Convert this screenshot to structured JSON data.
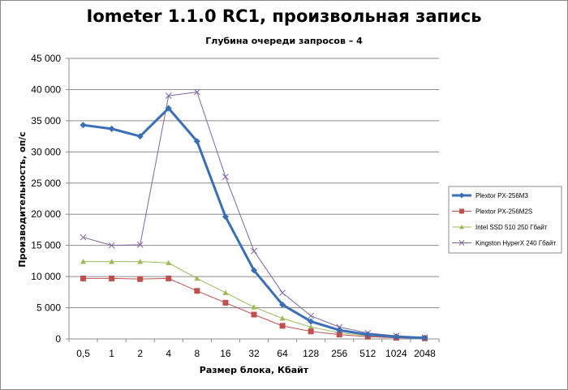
{
  "chart_data": {
    "type": "line",
    "title": "Iometer 1.1.0 RC1, произвольная запись",
    "subtitle": "Глубина очереди запросов – 4",
    "xlabel": "Размер блока, Кбайт",
    "ylabel": "Производительность, оп/с",
    "categories": [
      "0,5",
      "1",
      "2",
      "4",
      "8",
      "16",
      "32",
      "64",
      "128",
      "256",
      "512",
      "1024",
      "2048"
    ],
    "ylim": [
      0,
      45000
    ],
    "yticks": [
      0,
      5000,
      10000,
      15000,
      20000,
      25000,
      30000,
      35000,
      40000,
      45000
    ],
    "ytick_labels": [
      "0",
      "5 000",
      "10 000",
      "15 000",
      "20 000",
      "25 000",
      "30 000",
      "35 000",
      "40 000",
      "45 000"
    ],
    "grid": "horizontal",
    "legend_position": "right",
    "series": [
      {
        "name": "Plextor PX-256M3",
        "color": "#3a6fb8",
        "marker": "diamond",
        "width": 3,
        "values": [
          34300,
          33700,
          32500,
          37000,
          31700,
          19600,
          11000,
          5500,
          2800,
          1400,
          700,
          350,
          170
        ]
      },
      {
        "name": "Plextor PX-256M2S",
        "color": "#c0504d",
        "marker": "square",
        "width": 1,
        "values": [
          9700,
          9700,
          9600,
          9700,
          7700,
          5800,
          3900,
          2100,
          1200,
          700,
          350,
          180,
          90
        ]
      },
      {
        "name": "Intel SSD 510 250 Гбайт",
        "color": "#9bbb59",
        "marker": "triangle",
        "width": 1,
        "values": [
          12400,
          12400,
          12400,
          12200,
          9700,
          7400,
          5100,
          3300,
          1900,
          1000,
          500,
          250,
          120
        ]
      },
      {
        "name": "Kingston HyperX 240 Гбайт",
        "color": "#8064a2",
        "marker": "x",
        "width": 1,
        "values": [
          16300,
          15000,
          15100,
          39000,
          39600,
          26000,
          14100,
          7400,
          3700,
          1900,
          950,
          500,
          250
        ]
      }
    ]
  }
}
